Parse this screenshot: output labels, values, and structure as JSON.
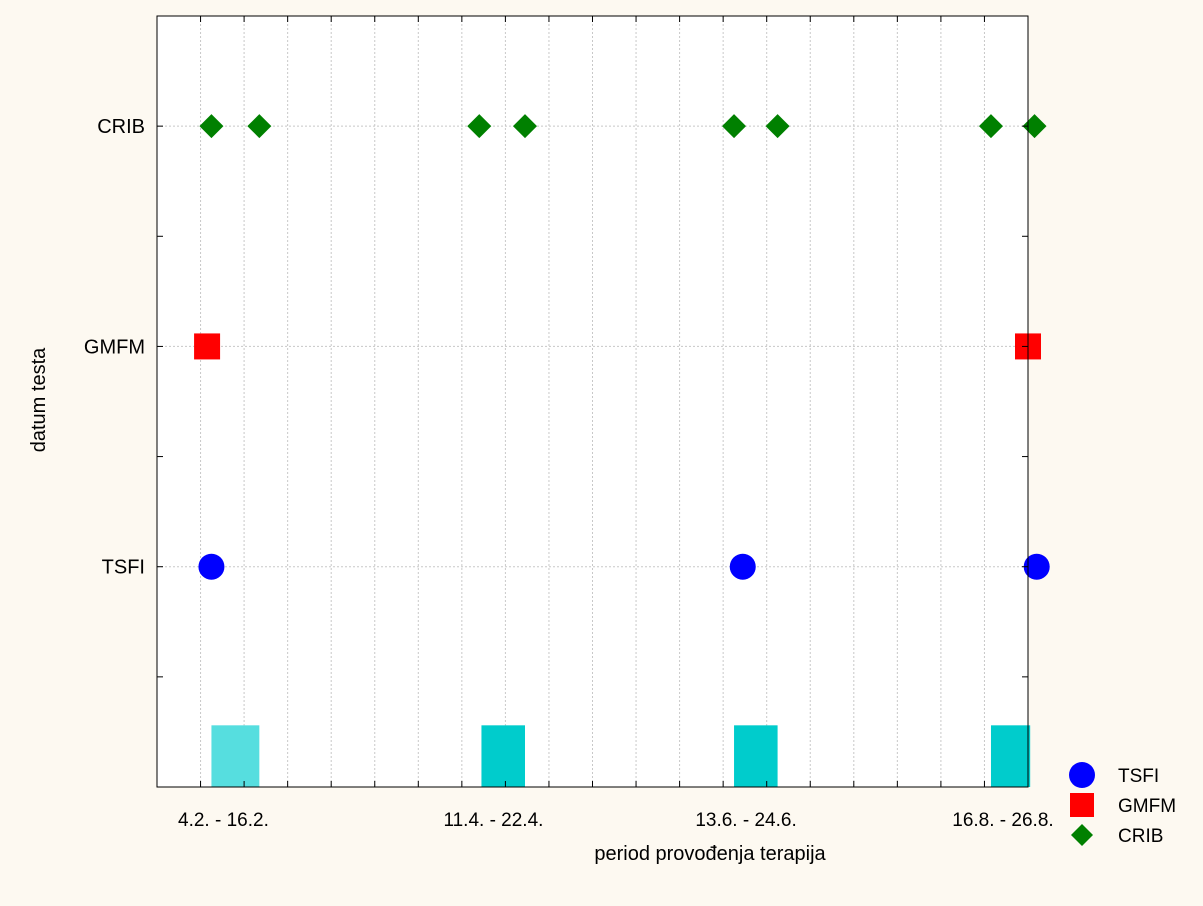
{
  "chart_data": {
    "type": "scatter",
    "title": "",
    "xlabel": "period provođenja terapija",
    "ylabel": "datum testa",
    "x_tick_labels": [
      "4.2. - 16.2.",
      "11.4. - 22.4.",
      "13.6. - 24.6.",
      "16.8. - 26.8."
    ],
    "y_categories": [
      "TSFI",
      "GMFM",
      "CRIB"
    ],
    "xlim": [
      0,
      20
    ],
    "ylim": [
      0,
      3.5
    ],
    "x_tick_positions": [
      1.25,
      7.45,
      13.25,
      19.15
    ],
    "grid": true,
    "legend_position": "bottom-right",
    "therapy_periods": [
      {
        "label": "4.2. - 16.2.",
        "start": 1.25,
        "end": 2.35,
        "color": "#56dedf"
      },
      {
        "label": "11.4. - 22.4.",
        "start": 7.45,
        "end": 8.45,
        "color": "#00cccc"
      },
      {
        "label": "13.6. - 24.6.",
        "start": 13.25,
        "end": 14.25,
        "color": "#00cccc"
      },
      {
        "label": "16.8. - 26.8.",
        "start": 19.15,
        "end": 20.05,
        "color": "#00cccc"
      }
    ],
    "series": [
      {
        "name": "TSFI",
        "marker": "circle",
        "color": "#0000ff",
        "category": "TSFI",
        "x": [
          1.25,
          13.45,
          20.2
        ]
      },
      {
        "name": "GMFM",
        "marker": "square",
        "color": "#ff0000",
        "category": "GMFM",
        "x": [
          1.15,
          20.0
        ]
      },
      {
        "name": "CRIB",
        "marker": "diamond",
        "color": "#008000",
        "category": "CRIB",
        "x": [
          1.25,
          2.35,
          7.4,
          8.45,
          13.25,
          14.25,
          19.15,
          20.15
        ]
      }
    ]
  }
}
